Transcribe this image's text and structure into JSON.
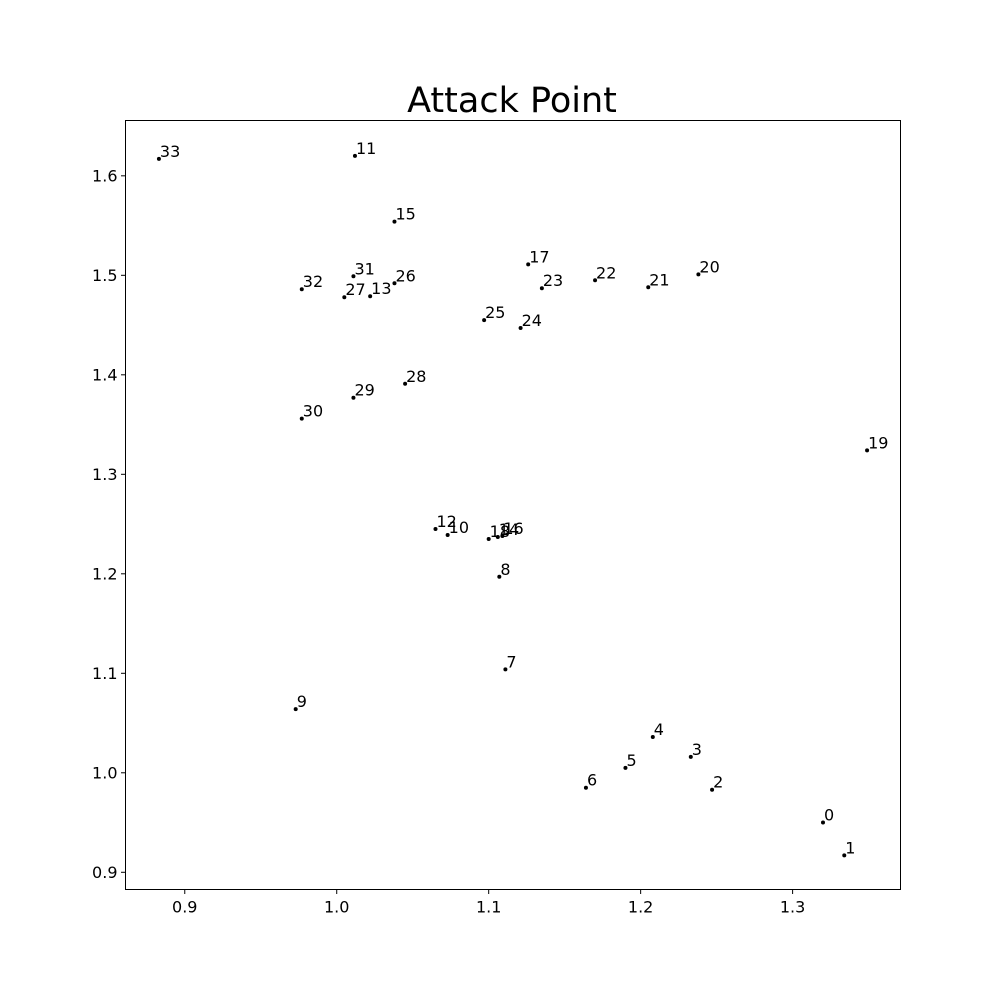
{
  "chart_data": {
    "type": "scatter",
    "title": "Attack Point",
    "xlabel": "",
    "ylabel": "",
    "xlim": [
      0.861,
      1.371
    ],
    "ylim": [
      0.8827,
      1.6556
    ],
    "x_ticks": [
      0.9,
      1.0,
      1.1,
      1.2,
      1.3
    ],
    "x_tick_labels": [
      "0.9",
      "1.0",
      "1.1",
      "1.2",
      "1.3"
    ],
    "y_ticks": [
      0.9,
      1.0,
      1.1,
      1.2,
      1.3,
      1.4,
      1.5,
      1.6
    ],
    "y_tick_labels": [
      "0.9",
      "1.0",
      "1.1",
      "1.2",
      "1.3",
      "1.4",
      "1.5",
      "1.6"
    ],
    "grid": false,
    "marker_color": "#000000",
    "points": [
      {
        "label": "0",
        "x": 1.32,
        "y": 0.95
      },
      {
        "label": "1",
        "x": 1.334,
        "y": 0.917
      },
      {
        "label": "2",
        "x": 1.247,
        "y": 0.983
      },
      {
        "label": "3",
        "x": 1.233,
        "y": 1.016
      },
      {
        "label": "4",
        "x": 1.208,
        "y": 1.036
      },
      {
        "label": "5",
        "x": 1.19,
        "y": 1.005
      },
      {
        "label": "6",
        "x": 1.164,
        "y": 0.985
      },
      {
        "label": "7",
        "x": 1.111,
        "y": 1.104
      },
      {
        "label": "8",
        "x": 1.107,
        "y": 1.197
      },
      {
        "label": "9",
        "x": 0.973,
        "y": 1.064
      },
      {
        "label": "10",
        "x": 1.073,
        "y": 1.239
      },
      {
        "label": "11",
        "x": 1.012,
        "y": 1.62
      },
      {
        "label": "12",
        "x": 1.065,
        "y": 1.245
      },
      {
        "label": "13",
        "x": 1.022,
        "y": 1.479
      },
      {
        "label": "14",
        "x": 1.106,
        "y": 1.237
      },
      {
        "label": "15",
        "x": 1.038,
        "y": 1.554
      },
      {
        "label": "16",
        "x": 1.109,
        "y": 1.238
      },
      {
        "label": "17",
        "x": 1.126,
        "y": 1.511
      },
      {
        "label": "18",
        "x": 1.1,
        "y": 1.235
      },
      {
        "label": "19",
        "x": 1.349,
        "y": 1.324
      },
      {
        "label": "20",
        "x": 1.238,
        "y": 1.501
      },
      {
        "label": "21",
        "x": 1.205,
        "y": 1.488
      },
      {
        "label": "22",
        "x": 1.17,
        "y": 1.495
      },
      {
        "label": "23",
        "x": 1.135,
        "y": 1.487
      },
      {
        "label": "24",
        "x": 1.121,
        "y": 1.447
      },
      {
        "label": "25",
        "x": 1.097,
        "y": 1.455
      },
      {
        "label": "26",
        "x": 1.038,
        "y": 1.492
      },
      {
        "label": "27",
        "x": 1.005,
        "y": 1.478
      },
      {
        "label": "28",
        "x": 1.045,
        "y": 1.391
      },
      {
        "label": "29",
        "x": 1.011,
        "y": 1.377
      },
      {
        "label": "30",
        "x": 0.977,
        "y": 1.356
      },
      {
        "label": "31",
        "x": 1.011,
        "y": 1.499
      },
      {
        "label": "32",
        "x": 0.977,
        "y": 1.486
      },
      {
        "label": "33",
        "x": 0.883,
        "y": 1.617
      }
    ]
  }
}
